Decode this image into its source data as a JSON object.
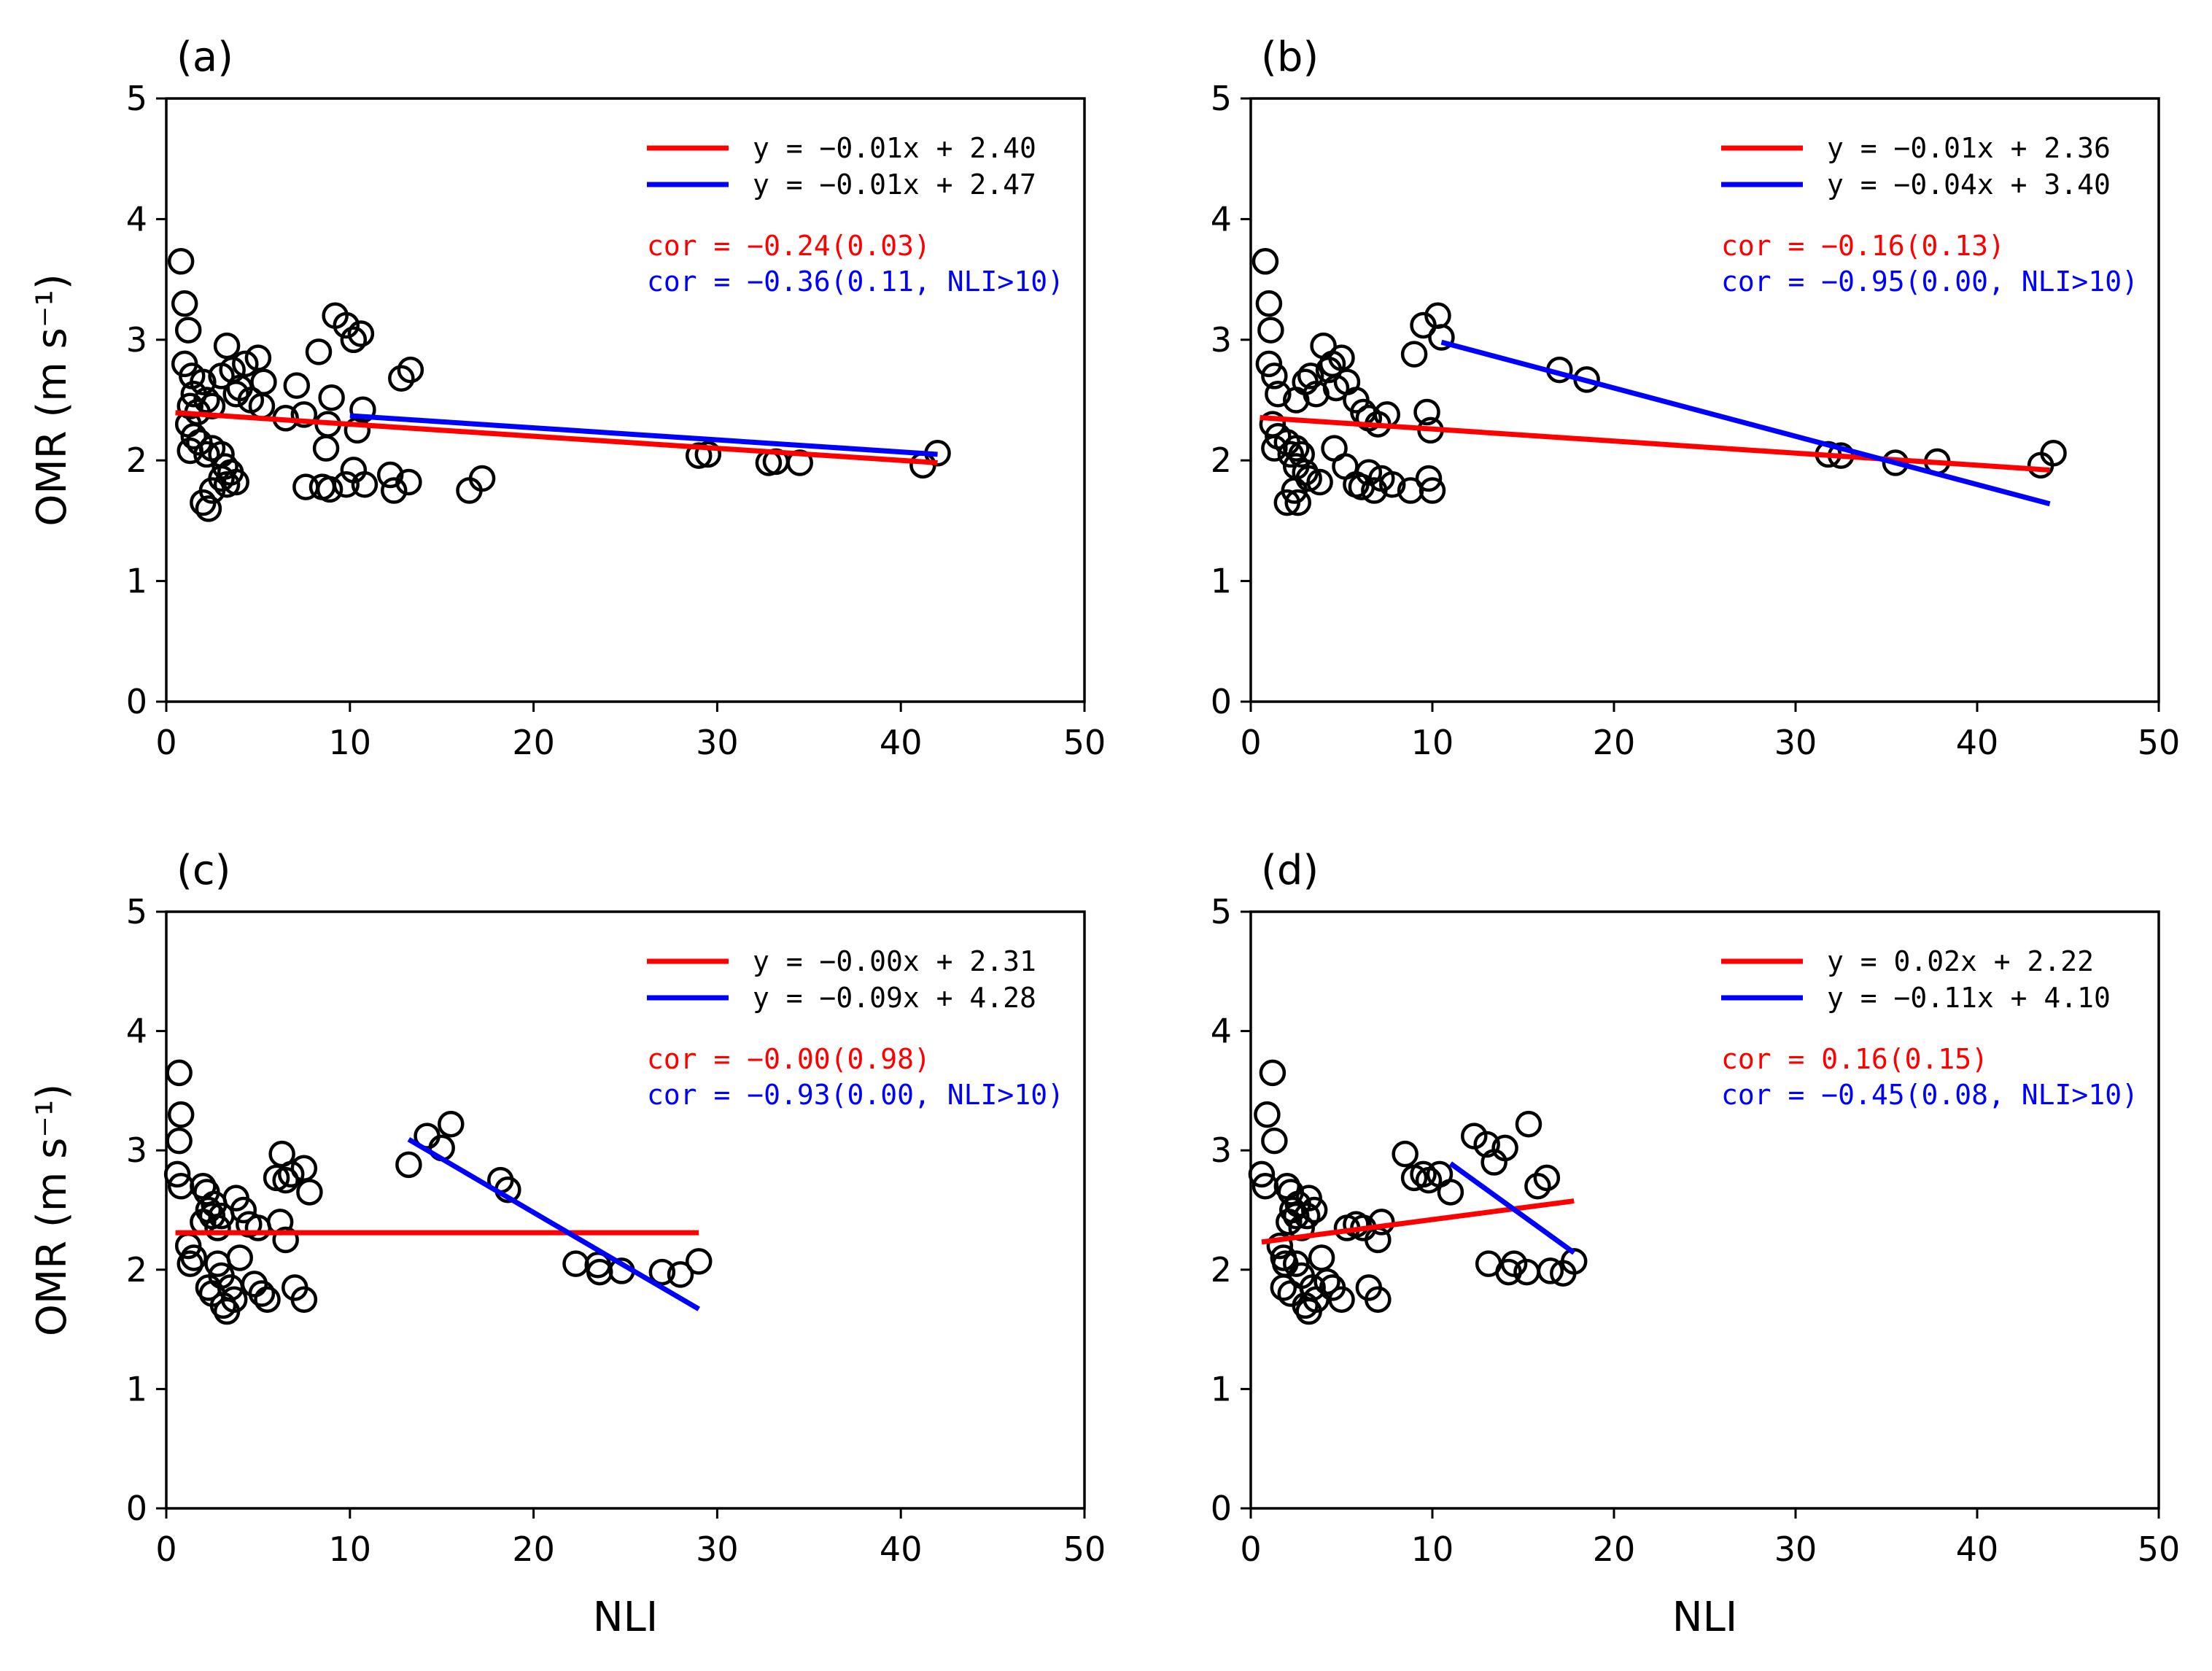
{
  "colors": {
    "red": "#ff0000",
    "blue": "#0000ff",
    "marker": "#000000"
  },
  "chart_data": [
    {
      "type": "scatter",
      "panel_label": "(a)",
      "xlabel": "",
      "ylabel": "OMR (m s⁻¹)",
      "xlim": [
        0,
        50
      ],
      "ylim": [
        0,
        5
      ],
      "xticks": [
        "0",
        "10",
        "20",
        "30",
        "40",
        "50"
      ],
      "yticks": [
        "0",
        "1",
        "2",
        "3",
        "4",
        "5"
      ],
      "points": [
        [
          0.8,
          3.65
        ],
        [
          1.0,
          3.3
        ],
        [
          1.2,
          3.08
        ],
        [
          1.0,
          2.8
        ],
        [
          1.4,
          2.7
        ],
        [
          1.5,
          2.55
        ],
        [
          1.3,
          2.45
        ],
        [
          1.7,
          2.4
        ],
        [
          2.0,
          2.65
        ],
        [
          2.2,
          2.5
        ],
        [
          2.5,
          2.45
        ],
        [
          1.2,
          2.3
        ],
        [
          1.5,
          2.2
        ],
        [
          1.8,
          2.15
        ],
        [
          1.3,
          2.08
        ],
        [
          2.2,
          2.05
        ],
        [
          2.5,
          2.1
        ],
        [
          3.0,
          2.05
        ],
        [
          3.2,
          1.95
        ],
        [
          3.5,
          1.9
        ],
        [
          3.0,
          1.85
        ],
        [
          3.3,
          1.8
        ],
        [
          2.5,
          1.75
        ],
        [
          2.0,
          1.65
        ],
        [
          2.3,
          1.6
        ],
        [
          3.8,
          1.82
        ],
        [
          3.0,
          2.7
        ],
        [
          3.3,
          2.95
        ],
        [
          3.6,
          2.75
        ],
        [
          4.0,
          2.6
        ],
        [
          4.3,
          2.8
        ],
        [
          4.6,
          2.5
        ],
        [
          5.0,
          2.85
        ],
        [
          5.3,
          2.65
        ],
        [
          5.2,
          2.45
        ],
        [
          3.8,
          2.55
        ],
        [
          6.5,
          2.35
        ],
        [
          7.1,
          2.62
        ],
        [
          7.5,
          2.38
        ],
        [
          8.3,
          2.9
        ],
        [
          8.8,
          2.3
        ],
        [
          9.0,
          2.52
        ],
        [
          8.7,
          2.1
        ],
        [
          9.2,
          3.2
        ],
        [
          9.8,
          3.12
        ],
        [
          10.2,
          3.0
        ],
        [
          10.6,
          3.05
        ],
        [
          10.7,
          2.42
        ],
        [
          10.4,
          2.25
        ],
        [
          8.5,
          1.78
        ],
        [
          8.9,
          1.76
        ],
        [
          9.8,
          1.8
        ],
        [
          10.2,
          1.92
        ],
        [
          10.8,
          1.8
        ],
        [
          7.6,
          1.78
        ],
        [
          12.2,
          1.88
        ],
        [
          12.4,
          1.75
        ],
        [
          13.2,
          1.82
        ],
        [
          12.8,
          2.68
        ],
        [
          13.3,
          2.75
        ],
        [
          16.5,
          1.75
        ],
        [
          17.2,
          1.85
        ],
        [
          29.0,
          2.04
        ],
        [
          29.5,
          2.05
        ],
        [
          32.8,
          1.98
        ],
        [
          33.2,
          1.99
        ],
        [
          34.5,
          1.98
        ],
        [
          41.2,
          1.96
        ],
        [
          42.0,
          2.06
        ]
      ],
      "fit_all": {
        "x_range": [
          0.5,
          42.0
        ],
        "slope": -0.01,
        "intercept": 2.4
      },
      "fit_nli_gt10": {
        "x_range": [
          10.0,
          42.0
        ],
        "slope": -0.01,
        "intercept": 2.47
      },
      "legend": {
        "red": "y = −0.01x + 2.40",
        "blue": "y = −0.01x + 2.47"
      },
      "cor": {
        "red": "cor = −0.24(0.03)",
        "blue": "cor = −0.36(0.11, NLI>10)"
      }
    },
    {
      "type": "scatter",
      "panel_label": "(b)",
      "xlabel": "",
      "ylabel": "",
      "xlim": [
        0,
        50
      ],
      "ylim": [
        0,
        5
      ],
      "xticks": [
        "0",
        "10",
        "20",
        "30",
        "40",
        "50"
      ],
      "yticks": [
        "0",
        "1",
        "2",
        "3",
        "4",
        "5"
      ],
      "points": [
        [
          0.8,
          3.65
        ],
        [
          1.0,
          3.3
        ],
        [
          1.1,
          3.08
        ],
        [
          1.0,
          2.8
        ],
        [
          1.3,
          2.7
        ],
        [
          1.5,
          2.55
        ],
        [
          1.2,
          2.3
        ],
        [
          1.5,
          2.2
        ],
        [
          1.3,
          2.1
        ],
        [
          2.0,
          2.15
        ],
        [
          2.2,
          2.05
        ],
        [
          2.5,
          2.1
        ],
        [
          2.8,
          2.05
        ],
        [
          2.5,
          1.95
        ],
        [
          3.0,
          1.9
        ],
        [
          3.2,
          1.85
        ],
        [
          2.4,
          1.75
        ],
        [
          2.0,
          1.65
        ],
        [
          2.6,
          1.65
        ],
        [
          3.8,
          1.82
        ],
        [
          2.5,
          2.5
        ],
        [
          3.0,
          2.65
        ],
        [
          3.3,
          2.7
        ],
        [
          3.6,
          2.55
        ],
        [
          4.0,
          2.95
        ],
        [
          4.3,
          2.75
        ],
        [
          4.5,
          2.8
        ],
        [
          4.7,
          2.6
        ],
        [
          5.0,
          2.85
        ],
        [
          5.3,
          2.65
        ],
        [
          5.8,
          2.5
        ],
        [
          6.2,
          2.4
        ],
        [
          6.5,
          2.35
        ],
        [
          7.0,
          2.3
        ],
        [
          7.5,
          2.38
        ],
        [
          4.6,
          2.1
        ],
        [
          5.2,
          1.95
        ],
        [
          5.8,
          1.8
        ],
        [
          6.1,
          1.78
        ],
        [
          6.5,
          1.9
        ],
        [
          6.8,
          1.75
        ],
        [
          7.2,
          1.85
        ],
        [
          7.8,
          1.8
        ],
        [
          8.8,
          1.75
        ],
        [
          10.0,
          1.75
        ],
        [
          9.8,
          1.85
        ],
        [
          9.0,
          2.88
        ],
        [
          9.5,
          3.12
        ],
        [
          10.3,
          3.2
        ],
        [
          10.5,
          3.02
        ],
        [
          9.7,
          2.4
        ],
        [
          9.9,
          2.25
        ],
        [
          17.0,
          2.75
        ],
        [
          18.5,
          2.67
        ],
        [
          31.8,
          2.05
        ],
        [
          32.5,
          2.04
        ],
        [
          35.5,
          1.98
        ],
        [
          37.8,
          1.99
        ],
        [
          43.5,
          1.96
        ],
        [
          44.2,
          2.06
        ]
      ],
      "fit_all": {
        "x_range": [
          0.5,
          44.0
        ],
        "slope": -0.01,
        "intercept": 2.36
      },
      "fit_nli_gt10": {
        "x_range": [
          10.5,
          44.0
        ],
        "slope": -0.04,
        "intercept": 3.4
      },
      "legend": {
        "red": "y = −0.01x + 2.36",
        "blue": "y = −0.04x + 3.40"
      },
      "cor": {
        "red": "cor = −0.16(0.13)",
        "blue": "cor = −0.95(0.00, NLI>10)"
      }
    },
    {
      "type": "scatter",
      "panel_label": "(c)",
      "xlabel": "NLI",
      "ylabel": "OMR (m s⁻¹)",
      "xlim": [
        0,
        50
      ],
      "ylim": [
        0,
        5
      ],
      "xticks": [
        "0",
        "10",
        "20",
        "30",
        "40",
        "50"
      ],
      "yticks": [
        "0",
        "1",
        "2",
        "3",
        "4",
        "5"
      ],
      "points": [
        [
          0.7,
          3.65
        ],
        [
          0.8,
          3.3
        ],
        [
          0.7,
          3.08
        ],
        [
          0.6,
          2.8
        ],
        [
          0.8,
          2.7
        ],
        [
          1.5,
          2.1
        ],
        [
          1.2,
          2.2
        ],
        [
          1.3,
          2.05
        ],
        [
          2.0,
          2.7
        ],
        [
          2.2,
          2.65
        ],
        [
          2.3,
          2.5
        ],
        [
          2.5,
          2.45
        ],
        [
          2.0,
          2.4
        ],
        [
          2.6,
          2.55
        ],
        [
          2.8,
          2.35
        ],
        [
          3.0,
          2.45
        ],
        [
          2.3,
          1.85
        ],
        [
          2.5,
          1.8
        ],
        [
          2.8,
          2.05
        ],
        [
          3.0,
          1.95
        ],
        [
          3.1,
          1.7
        ],
        [
          3.3,
          1.65
        ],
        [
          3.5,
          1.85
        ],
        [
          3.7,
          1.75
        ],
        [
          3.8,
          2.6
        ],
        [
          4.0,
          2.1
        ],
        [
          4.2,
          2.5
        ],
        [
          4.5,
          2.38
        ],
        [
          4.8,
          1.88
        ],
        [
          5.2,
          1.8
        ],
        [
          5.5,
          1.75
        ],
        [
          5.0,
          2.35
        ],
        [
          6.0,
          2.77
        ],
        [
          6.3,
          2.97
        ],
        [
          6.5,
          2.75
        ],
        [
          6.8,
          2.8
        ],
        [
          6.2,
          2.4
        ],
        [
          6.5,
          2.25
        ],
        [
          7.0,
          1.85
        ],
        [
          7.5,
          1.75
        ],
        [
          7.5,
          2.85
        ],
        [
          7.8,
          2.65
        ],
        [
          13.2,
          2.88
        ],
        [
          14.2,
          3.12
        ],
        [
          15.0,
          3.02
        ],
        [
          15.5,
          3.22
        ],
        [
          18.2,
          2.75
        ],
        [
          18.6,
          2.67
        ],
        [
          22.3,
          2.05
        ],
        [
          23.5,
          2.04
        ],
        [
          23.6,
          1.98
        ],
        [
          24.8,
          1.99
        ],
        [
          27.0,
          1.98
        ],
        [
          28.0,
          1.96
        ],
        [
          29.0,
          2.07
        ]
      ],
      "fit_all": {
        "x_range": [
          0.5,
          29.0
        ],
        "slope": -0.0,
        "intercept": 2.31
      },
      "fit_nli_gt10": {
        "x_range": [
          13.2,
          29.0
        ],
        "slope": -0.09,
        "intercept": 4.28
      },
      "legend": {
        "red": "y = −0.00x + 2.31",
        "blue": "y = −0.09x + 4.28"
      },
      "cor": {
        "red": "cor = −0.00(0.98)",
        "blue": "cor = −0.93(0.00, NLI>10)"
      }
    },
    {
      "type": "scatter",
      "panel_label": "(d)",
      "xlabel": "NLI",
      "ylabel": "",
      "xlim": [
        0,
        50
      ],
      "ylim": [
        0,
        5
      ],
      "xticks": [
        "0",
        "10",
        "20",
        "30",
        "40",
        "50"
      ],
      "yticks": [
        "0",
        "1",
        "2",
        "3",
        "4",
        "5"
      ],
      "points": [
        [
          1.2,
          3.65
        ],
        [
          0.9,
          3.3
        ],
        [
          1.3,
          3.08
        ],
        [
          0.6,
          2.8
        ],
        [
          0.8,
          2.7
        ],
        [
          1.8,
          2.1
        ],
        [
          1.6,
          2.2
        ],
        [
          1.9,
          2.05
        ],
        [
          2.0,
          2.7
        ],
        [
          2.2,
          2.65
        ],
        [
          2.3,
          2.5
        ],
        [
          2.5,
          2.45
        ],
        [
          2.1,
          2.4
        ],
        [
          2.6,
          2.55
        ],
        [
          2.8,
          2.35
        ],
        [
          3.1,
          2.45
        ],
        [
          1.8,
          1.85
        ],
        [
          2.2,
          1.8
        ],
        [
          2.5,
          2.05
        ],
        [
          2.8,
          1.95
        ],
        [
          3.0,
          1.7
        ],
        [
          3.2,
          1.65
        ],
        [
          3.4,
          1.85
        ],
        [
          3.6,
          1.75
        ],
        [
          3.2,
          2.6
        ],
        [
          3.9,
          2.1
        ],
        [
          3.5,
          2.5
        ],
        [
          4.2,
          1.9
        ],
        [
          4.5,
          1.85
        ],
        [
          5.0,
          1.75
        ],
        [
          5.3,
          2.35
        ],
        [
          5.8,
          2.38
        ],
        [
          6.2,
          2.35
        ],
        [
          6.5,
          1.85
        ],
        [
          7.0,
          1.75
        ],
        [
          7.0,
          2.25
        ],
        [
          7.2,
          2.4
        ],
        [
          8.5,
          2.97
        ],
        [
          9.0,
          2.77
        ],
        [
          9.5,
          2.8
        ],
        [
          9.8,
          2.75
        ],
        [
          10.4,
          2.8
        ],
        [
          11.0,
          2.65
        ],
        [
          12.3,
          3.12
        ],
        [
          13.0,
          3.05
        ],
        [
          13.4,
          2.9
        ],
        [
          14.0,
          3.02
        ],
        [
          15.3,
          3.22
        ],
        [
          15.8,
          2.7
        ],
        [
          16.3,
          2.77
        ],
        [
          13.1,
          2.05
        ],
        [
          14.2,
          1.98
        ],
        [
          14.5,
          2.05
        ],
        [
          15.2,
          1.98
        ],
        [
          16.5,
          1.99
        ],
        [
          17.2,
          1.97
        ],
        [
          17.8,
          2.07
        ]
      ],
      "fit_all": {
        "x_range": [
          0.6,
          17.8
        ],
        "slope": 0.02,
        "intercept": 2.22
      },
      "fit_nli_gt10": {
        "x_range": [
          11.0,
          17.8
        ],
        "slope": -0.11,
        "intercept": 4.1
      },
      "legend": {
        "red": "y = 0.02x + 2.22",
        "blue": "y = −0.11x + 4.10"
      },
      "cor": {
        "red": "cor = 0.16(0.15)",
        "blue": "cor = −0.45(0.08, NLI>10)"
      }
    }
  ]
}
